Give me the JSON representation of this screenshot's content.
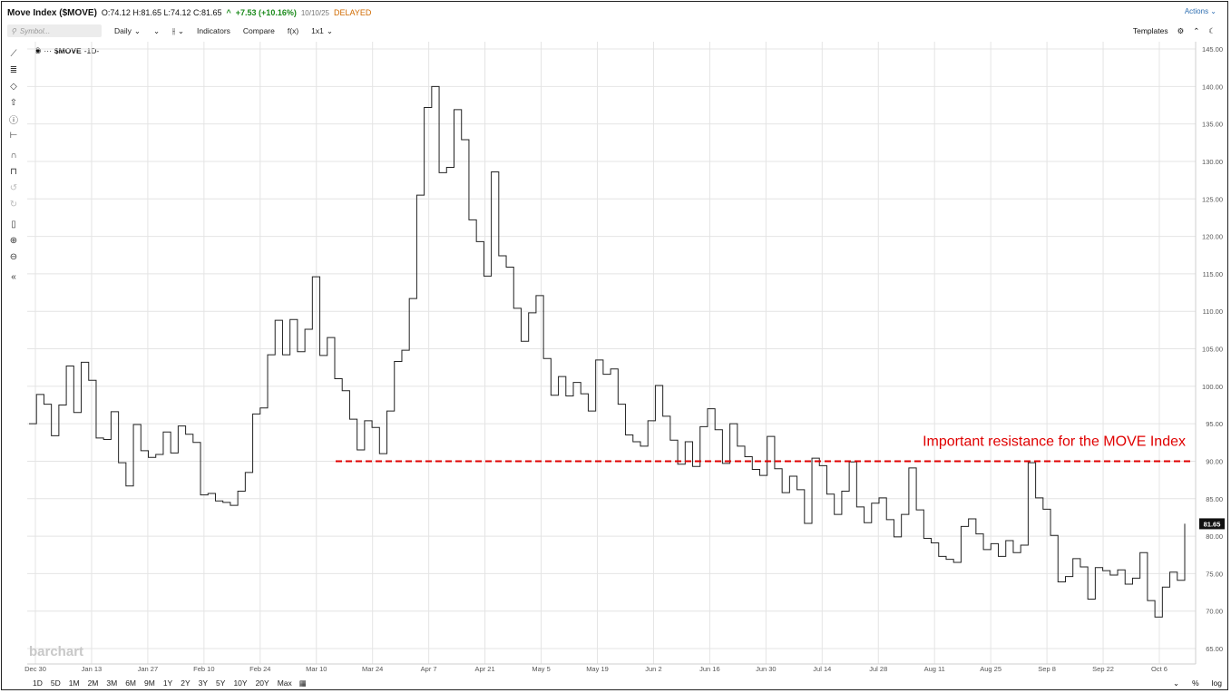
{
  "header": {
    "title": "Move Index ($MOVE)",
    "ohlc": "O:74.12 H:81.65 L:74.12 C:81.65",
    "change_arrow": "^",
    "change": "+7.53 (+10.16%)",
    "date": "10/10/25",
    "status": "DELAYED",
    "actions_label": "Actions"
  },
  "toolbar": {
    "symbol_placeholder": "Symbol...",
    "interval": "Daily",
    "indicators": "Indicators",
    "compare": "Compare",
    "fx": "f(x)",
    "layout": "1x1",
    "templates": "Templates"
  },
  "legend": {
    "symbol": "$MOVE",
    "interval": "-1D-"
  },
  "bottom": {
    "ranges": [
      "1D",
      "5D",
      "1M",
      "2M",
      "3M",
      "6M",
      "9M",
      "1Y",
      "2Y",
      "3Y",
      "5Y",
      "10Y",
      "20Y",
      "Max"
    ],
    "percent": "%",
    "log": "log"
  },
  "watermark": "barchart",
  "colors": {
    "price_line": "#222222",
    "resistance": "#e00000",
    "last_badge": "#111111"
  },
  "chart_data": {
    "type": "line",
    "title": "Move Index ($MOVE)",
    "xlabel": "",
    "ylabel": "",
    "ylim": [
      65,
      145
    ],
    "y_ticks": [
      "145.00",
      "140.00",
      "135.00",
      "130.00",
      "125.00",
      "120.00",
      "115.00",
      "110.00",
      "105.00",
      "100.00",
      "95.00",
      "90.00",
      "85.00",
      "80.00",
      "75.00",
      "70.00",
      "65.00"
    ],
    "x_tick_labels": [
      "Dec 30",
      "Jan 13",
      "Jan 27",
      "Feb 10",
      "Feb 24",
      "Mar 10",
      "Mar 24",
      "Apr 7",
      "Apr 21",
      "May 5",
      "May 19",
      "Jun 2",
      "Jun 16",
      "Jun 30",
      "Jul 14",
      "Jul 28",
      "Aug 11",
      "Aug 25",
      "Sep 8",
      "Sep 22",
      "Oct 6"
    ],
    "grid": true,
    "series": [
      {
        "values": [
          95.0,
          98.9,
          97.6,
          93.4,
          97.5,
          102.7,
          96.5,
          103.2,
          100.8,
          93.1,
          92.9,
          96.6,
          89.8,
          86.7,
          94.9,
          91.4,
          90.5,
          90.9,
          93.9,
          91.1,
          94.7,
          93.6,
          92.5,
          85.5,
          85.7,
          84.7,
          84.5,
          84.1,
          86.0,
          88.5,
          96.3,
          97.1,
          104.2,
          108.8,
          104.2,
          108.9,
          104.6,
          107.6,
          114.6,
          104.1,
          106.5,
          101.0,
          99.4,
          95.6,
          91.5,
          95.4,
          94.5,
          91.0,
          96.7,
          103.3,
          104.8,
          111.7,
          125.5,
          137.2,
          140.0,
          128.5,
          129.2,
          136.9,
          132.9,
          122.2,
          119.3,
          114.7,
          128.6,
          117.4,
          115.9,
          110.4,
          106.0,
          109.8,
          112.1,
          103.7,
          98.8,
          101.3,
          98.7,
          100.5,
          99.0,
          96.7,
          103.5,
          101.6,
          102.3,
          97.6,
          93.5,
          92.6,
          92.0,
          95.4,
          100.1,
          96.0,
          92.8,
          89.6,
          92.6,
          89.3,
          94.6,
          97.0,
          94.2,
          89.7,
          95.0,
          92.0,
          90.6,
          88.9,
          88.1,
          93.3,
          89.0,
          85.8,
          88.0,
          86.2,
          81.7,
          90.4,
          89.4,
          85.6,
          82.9,
          86.0,
          89.9,
          83.9,
          81.8,
          84.4,
          85.1,
          82.2,
          79.9,
          82.9,
          89.1,
          83.5,
          79.7,
          79.1,
          77.3,
          76.9,
          76.5,
          81.3,
          82.3,
          80.3,
          78.2,
          79.0,
          77.3,
          79.4,
          77.8,
          78.8,
          89.8,
          85.1,
          83.6,
          80.1,
          73.9,
          74.6,
          77.0,
          75.9,
          71.6,
          75.8,
          75.4,
          74.8,
          75.5,
          73.6,
          74.4,
          77.8,
          71.4,
          69.2,
          73.2,
          75.2,
          74.1,
          81.65
        ]
      }
    ],
    "annotations": [
      {
        "type": "horizontal_line",
        "y": 90.0,
        "label": "Important resistance for the MOVE Index",
        "color": "#e00000",
        "style": "dashed"
      }
    ],
    "last_value_label": "81.65"
  }
}
